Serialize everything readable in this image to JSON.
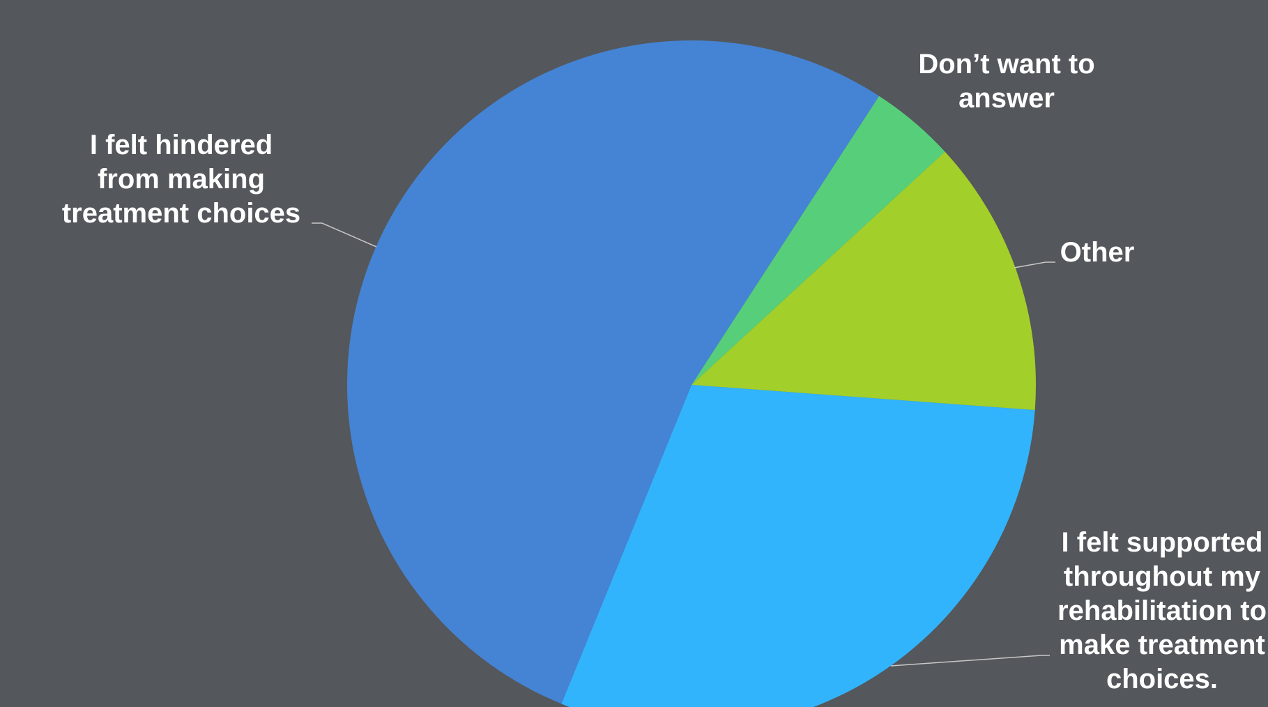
{
  "colors": {
    "background": "#54575b",
    "leader_line": "#c8c8c8",
    "label_text": "#ffffff"
  },
  "chart_data": {
    "type": "pie",
    "title": "",
    "start_angle_deg": 33,
    "direction": "clockwise",
    "legend": "none",
    "slices": [
      {
        "label": "Don’t want to\nanswer",
        "value": 4,
        "color": "#57cf7a"
      },
      {
        "label": "Other",
        "value": 13,
        "color": "#a3cf2a"
      },
      {
        "label": "I felt supported\nthroughout my\nrehabilitation to\nmake treatment\nchoices.",
        "value": 30,
        "color": "#32b4fc"
      },
      {
        "label": "I felt hindered\nfrom making\ntreatment choices",
        "value": 53,
        "color": "#4584d4"
      }
    ]
  }
}
